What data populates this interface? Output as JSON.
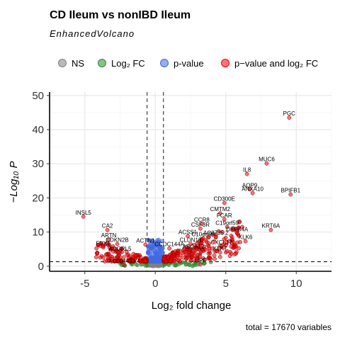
{
  "title": "CD Ileum vs nonIBD Ileum",
  "subtitle": "EnhancedVolcano",
  "caption": "total = 17670 variables",
  "legend": [
    {
      "label": "NS",
      "color": "#808080"
    },
    {
      "label": "Log₂ FC",
      "color": "#2e8b2e"
    },
    {
      "label": "p-value",
      "color": "#4169e1"
    },
    {
      "label": "p−value and log₂ FC",
      "color": "#ff0000"
    }
  ],
  "chart_data": {
    "type": "scatter",
    "title": "CD Ileum vs nonIBD Ileum",
    "subtitle": "EnhancedVolcano",
    "xlabel": "Log₂ fold change",
    "ylabel": "−Log₁₀ P",
    "xlim": [
      -7.5,
      12.5
    ],
    "ylim": [
      -1.5,
      51
    ],
    "x_ticks": [
      -5,
      0,
      5,
      10
    ],
    "y_ticks": [
      0,
      10,
      20,
      30,
      40,
      50
    ],
    "fc_cutoff": 0.58,
    "p_cutoff_log10": 1.3,
    "grid": true,
    "legend_position": "top",
    "labeled_points": [
      {
        "label": "PGC",
        "x": 9.5,
        "y": 43.5
      },
      {
        "label": "MUC6",
        "x": 7.9,
        "y": 30.1
      },
      {
        "label": "IL8",
        "x": 6.5,
        "y": 27.0
      },
      {
        "label": "AQP9",
        "x": 6.7,
        "y": 22.5
      },
      {
        "label": "ANXA10",
        "x": 6.9,
        "y": 21.4
      },
      {
        "label": "BPIFB1",
        "x": 9.6,
        "y": 21.0
      },
      {
        "label": "CD300E",
        "x": 4.9,
        "y": 18.5
      },
      {
        "label": "CMTM2",
        "x": 4.6,
        "y": 15.5
      },
      {
        "label": "FCAR",
        "x": 4.9,
        "y": 13.7
      },
      {
        "label": "CCR8",
        "x": 3.3,
        "y": 12.4
      },
      {
        "label": "C19orf59",
        "x": 5.1,
        "y": 11.5
      },
      {
        "label": "CSF3R",
        "x": 3.2,
        "y": 11.0
      },
      {
        "label": "DEFB4A",
        "x": 5.8,
        "y": 9.6
      },
      {
        "label": "KRT6A",
        "x": 8.2,
        "y": 10.6
      },
      {
        "label": "KLK6",
        "x": 6.4,
        "y": 7.3
      },
      {
        "label": "C10orf99",
        "x": 3.4,
        "y": 8.2
      },
      {
        "label": "AC0735.2",
        "x": 4.3,
        "y": 8.6
      },
      {
        "label": "CLDN18",
        "x": 2.5,
        "y": 6.5
      },
      {
        "label": "CXCL17",
        "x": 4.7,
        "y": 5.8
      },
      {
        "label": "KLK7",
        "x": 4.6,
        "y": 4.0
      },
      {
        "label": "ABCA12",
        "x": 2.7,
        "y": 4.5
      },
      {
        "label": "CCDC144A",
        "x": 1.0,
        "y": 5.2
      },
      {
        "label": "ACTN1",
        "x": -0.7,
        "y": 6.3
      },
      {
        "label": "ACSS1",
        "x": 2.3,
        "y": 8.8
      },
      {
        "label": "LIPF",
        "x": 3.2,
        "y": 0.5
      },
      {
        "label": "AC004453.4",
        "x": -2.2,
        "y": 0.3
      },
      {
        "label": "INSL5",
        "x": -5.1,
        "y": 14.5
      },
      {
        "label": "CA2",
        "x": -3.4,
        "y": 10.6
      },
      {
        "label": "ARTN",
        "x": -3.3,
        "y": 7.8
      },
      {
        "label": "CDKN2B",
        "x": -2.7,
        "y": 6.5
      },
      {
        "label": "EVX1",
        "x": -3.7,
        "y": 5.5
      },
      {
        "label": "ADGRL5",
        "x": -2.5,
        "y": 3.9
      }
    ]
  }
}
